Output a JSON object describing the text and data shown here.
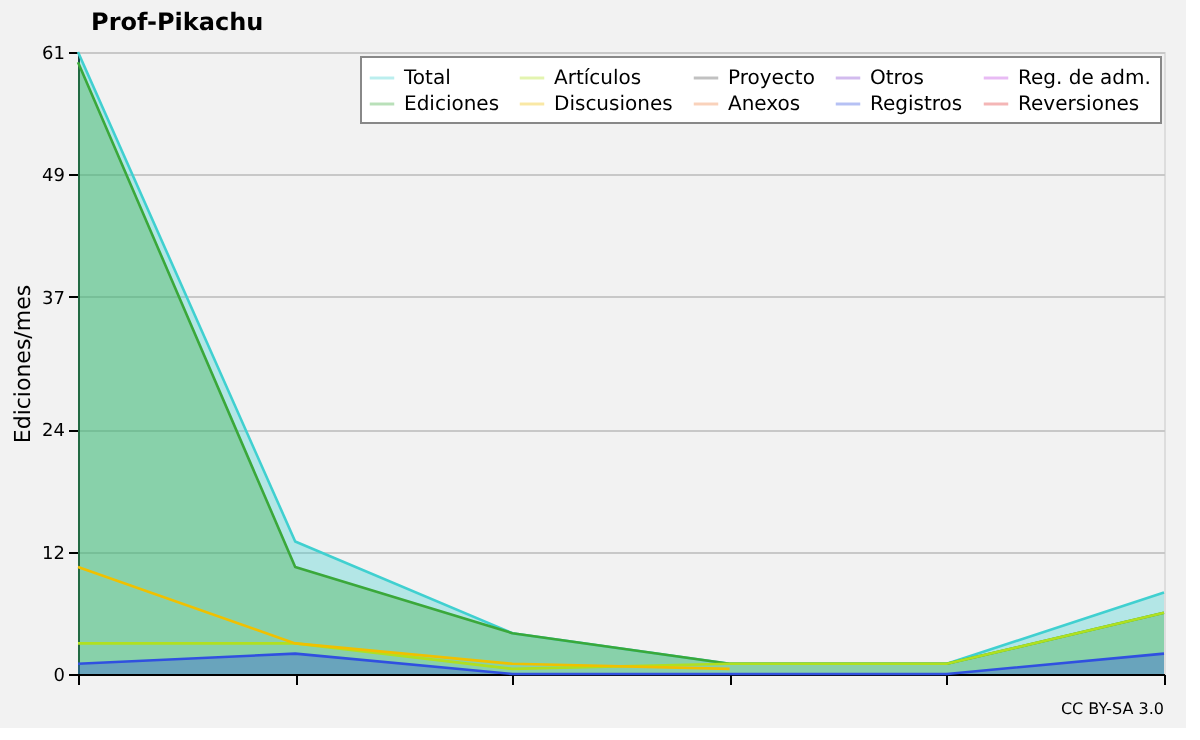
{
  "chart_data": {
    "type": "line",
    "title": "Prof-Pikachu",
    "ylabel": "Ediciones/mes",
    "categories": [
      null,
      null,
      null,
      null,
      null,
      null
    ],
    "series": [
      {
        "name": "Total",
        "color": "#40d0d0",
        "type": "area",
        "values": [
          61,
          13,
          4,
          1,
          1,
          8
        ]
      },
      {
        "name": "Ediciones",
        "color": "#3aa83a",
        "type": "area",
        "values": [
          60,
          10.5,
          4,
          1,
          1,
          6
        ]
      },
      {
        "name": "Artículos",
        "color": "#b0e020",
        "values": [
          3,
          3,
          0.5,
          1,
          1,
          6
        ]
      },
      {
        "name": "Discusiones",
        "color": "#f0c000",
        "values": [
          10.5,
          3,
          1,
          0.5,
          null,
          null
        ]
      },
      {
        "name": "Proyecto",
        "color": "#505050",
        "values": [
          null,
          null,
          null,
          null,
          null,
          null
        ]
      },
      {
        "name": "Anexos",
        "color": "#f08040",
        "values": [
          null,
          null,
          null,
          null,
          null,
          null
        ]
      },
      {
        "name": "Otros",
        "color": "#8040d0",
        "values": [
          null,
          null,
          null,
          null,
          null,
          null
        ]
      },
      {
        "name": "Registros",
        "color": "#3050e0",
        "type": "area",
        "values": [
          1,
          2,
          0,
          0,
          0,
          2
        ]
      },
      {
        "name": "Reg. de adm.",
        "color": "#c040e0",
        "values": [
          null,
          null,
          null,
          null,
          null,
          null
        ]
      },
      {
        "name": "Reversiones",
        "color": "#e03030",
        "values": [
          null,
          null,
          null,
          null,
          null,
          null
        ]
      }
    ],
    "ylim": [
      0,
      61
    ],
    "yticks": [
      0,
      12,
      24,
      37,
      49,
      61
    ],
    "grid": "y",
    "legend": "top right",
    "tick_labels": "y",
    "annotations": [
      "CC BY-SA 3.0"
    ]
  }
}
